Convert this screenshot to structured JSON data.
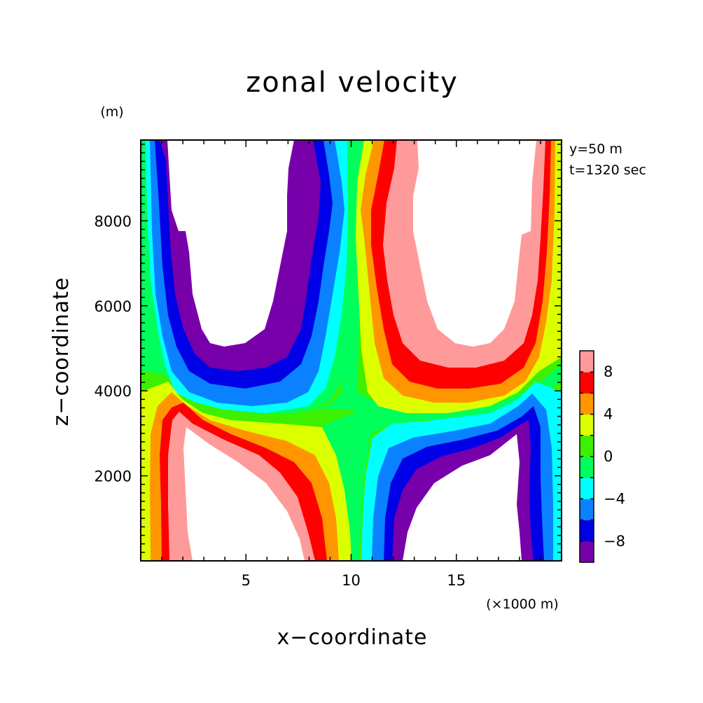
{
  "chart_data": {
    "type": "heatmap",
    "subtype": "filled-contour",
    "title": "zonal velocity",
    "xlabel": "x−coordinate",
    "ylabel": "z−coordinate",
    "x_unit": "(×1000 m)",
    "y_unit": "(m)",
    "info": [
      "y=50  m",
      "t=1320 sec"
    ],
    "xlim": [
      0,
      20
    ],
    "ylim": [
      0,
      9900
    ],
    "xticks": [
      5,
      10,
      15
    ],
    "yticks": [
      2000,
      4000,
      6000,
      8000
    ],
    "grid": false,
    "legend": "colorbar-right",
    "colorbar": {
      "levels": [
        -10,
        -8,
        -6,
        -4,
        -2,
        0,
        2,
        4,
        6,
        8,
        10
      ],
      "tick_labels": [
        8,
        4,
        0,
        -4,
        -8
      ],
      "colors": [
        "#7700aa",
        "#0000e6",
        "#0a82ff",
        "#00ffff",
        "#00ff5a",
        "#3cf000",
        "#dcff00",
        "#ff9600",
        "#ff0000",
        "#ff9a9a"
      ]
    },
    "field_description": [
      {
        "region": "upper-left",
        "x": [
          0,
          10
        ],
        "z": [
          4300,
          9900
        ],
        "sign": "negative",
        "min_le": -10
      },
      {
        "region": "upper-right",
        "x": [
          10,
          20
        ],
        "z": [
          4300,
          9900
        ],
        "sign": "positive",
        "max_ge": 10
      },
      {
        "region": "lower-left",
        "x": [
          0,
          10
        ],
        "z": [
          0,
          3600
        ],
        "sign": "positive",
        "max_ge": 10
      },
      {
        "region": "lower-right",
        "x": [
          10,
          20
        ],
        "z": [
          0,
          3600
        ],
        "sign": "negative",
        "min_le": -10
      }
    ]
  }
}
